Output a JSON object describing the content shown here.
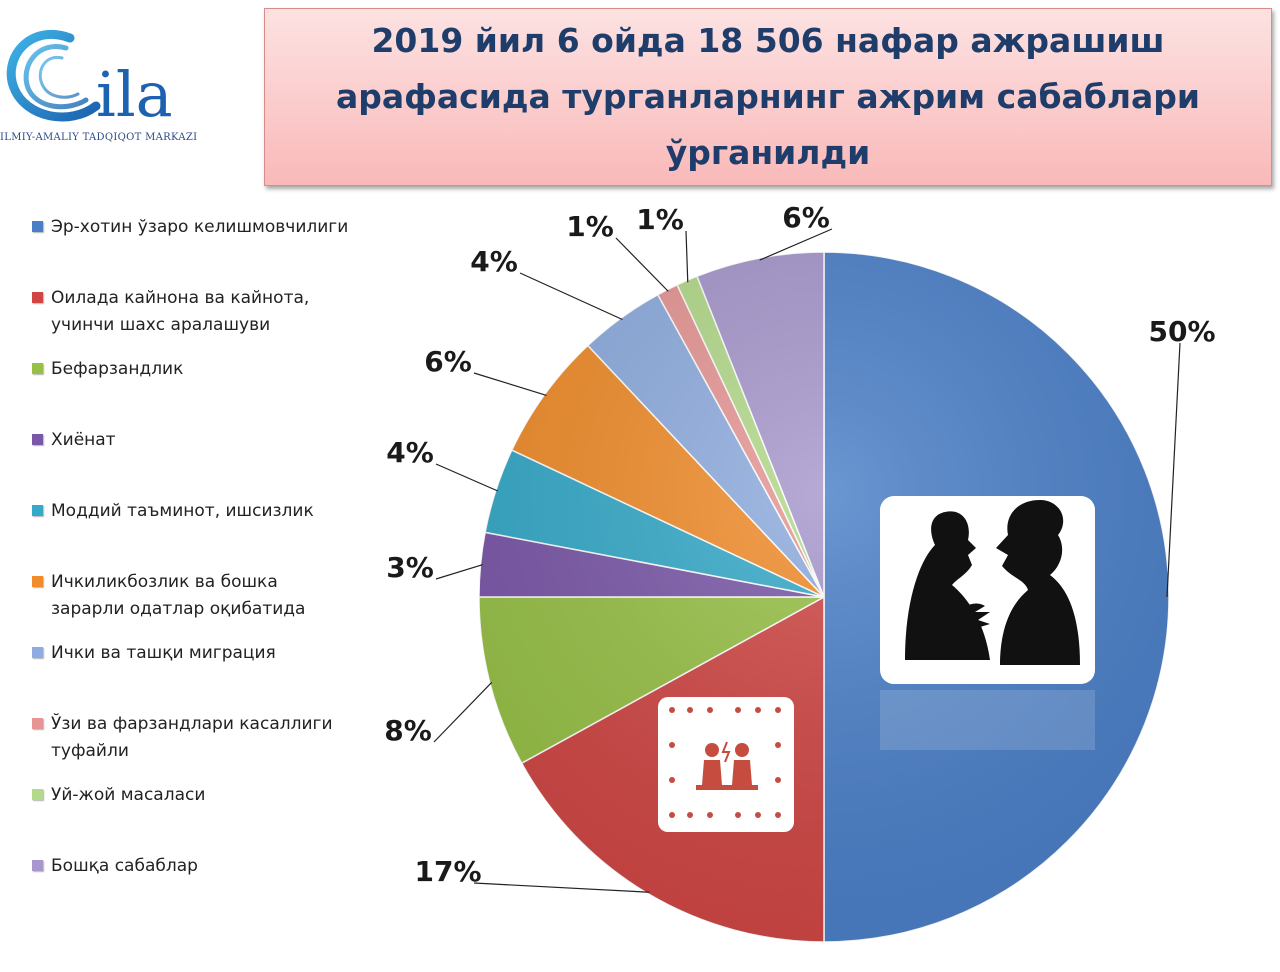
{
  "logo": {
    "wordmark": "ila",
    "tagline": "ILMIY-AMALIY TADQIQOT MARKAZI"
  },
  "title": "2019 йил 6 ойда 18 506 нафар ажрашиш арафасида турганларнинг ажрим сабаблари ўрганилди",
  "chart_data": {
    "type": "pie",
    "title": "2019 йил 6 ойда 18 506 нафар ажрашиш арафасида турганларнинг ажрим сабаблари ўрганилди",
    "legend_position": "left",
    "slices": [
      {
        "label": "Эр-хотин ўзаро келишмовчилиги",
        "value": 50,
        "display": "50%",
        "color": "#4a7fc8"
      },
      {
        "label": "Оилада кайнона ва кайнота, учинчи шахс аралашуви",
        "value": 17,
        "display": "17%",
        "color": "#cf4644"
      },
      {
        "label": "Бефарзандлик",
        "value": 8,
        "display": "8%",
        "color": "#97c046"
      },
      {
        "label": "Хиёнат",
        "value": 3,
        "display": "3%",
        "color": "#7a57a8"
      },
      {
        "label": "Моддий таъминот, ишсизлик",
        "value": 4,
        "display": "4%",
        "color": "#35a9c8"
      },
      {
        "label": "Ичкиликбозлик ва бошка зарарли одатлар оқибатида",
        "value": 6,
        "display": "6%",
        "color": "#f08c2a"
      },
      {
        "label": "Ички ва ташқи миграция",
        "value": 4,
        "display": "4%",
        "color": "#8eacdf"
      },
      {
        "label": "Ўзи ва фарзандлари касаллиги туфайли",
        "value": 1,
        "display": "1%",
        "color": "#e59694"
      },
      {
        "label": "Уй-жой масаласи",
        "value": 1,
        "display": "1%",
        "color": "#b3d98a"
      },
      {
        "label": "Бошқа сабаблар",
        "value": 6,
        "display": "6%",
        "color": "#a797cc"
      }
    ]
  }
}
